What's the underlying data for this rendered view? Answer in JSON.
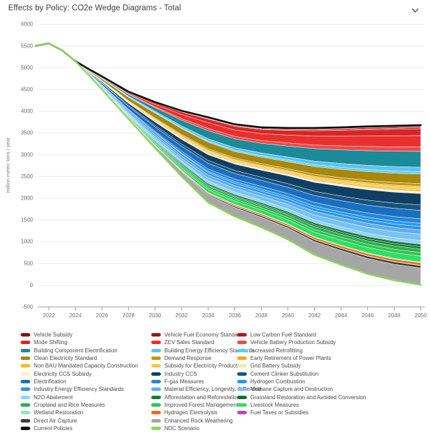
{
  "header": {
    "title": "Effects by Policy: CO2e Wedge Diagrams - Total",
    "collapse_icon": "chevron-down"
  },
  "chart_data": {
    "type": "area",
    "title": "Effects by Policy: CO2e Wedge Diagrams - Total",
    "xlabel": "",
    "ylabel": "million metric tons / year",
    "ylim": [
      -500,
      6000
    ],
    "yticks": [
      6000,
      5500,
      5000,
      4500,
      4000,
      3500,
      3000,
      2500,
      2000,
      1500,
      1000,
      500,
      0,
      -500
    ],
    "xticks": [
      2022,
      2024,
      2026,
      2028,
      2030,
      2032,
      2034,
      2036,
      2038,
      2040,
      2042,
      2044,
      2046,
      2048,
      2050
    ],
    "grid": "horizontal",
    "legend_position": "bottom",
    "x": [
      2021,
      2022,
      2023,
      2024,
      2025,
      2026,
      2028,
      2030,
      2032,
      2034,
      2036,
      2038,
      2040,
      2042,
      2044,
      2046,
      2048,
      2050
    ],
    "top_series": {
      "name": "Current Policies",
      "color": "#0a0a0a",
      "values": [
        5500,
        5560,
        5400,
        5150,
        4970,
        4800,
        4450,
        4210,
        4010,
        3860,
        3700,
        3630,
        3615,
        3615,
        3630,
        3650,
        3665,
        3680
      ]
    },
    "bottom_series": {
      "name": "NDC Scenario",
      "color": "#8ed45f",
      "values": [
        5500,
        5560,
        5400,
        5150,
        4830,
        4500,
        3820,
        3150,
        2500,
        1900,
        1580,
        1330,
        1050,
        700,
        470,
        260,
        110,
        10
      ]
    },
    "profiles": {
      "std": [
        1,
        1,
        1,
        1,
        1,
        1,
        1,
        1,
        1,
        1,
        1,
        1,
        1,
        1,
        1,
        1,
        1,
        1
      ],
      "front": [
        1.7,
        1.7,
        1.7,
        1.7,
        1.7,
        1.6,
        1.5,
        1.35,
        1.15,
        1.0,
        0.9,
        0.85,
        0.8,
        0.78,
        0.76,
        0.75,
        0.75,
        0.75
      ],
      "ramp": [
        0.3,
        0.3,
        0.3,
        0.3,
        0.35,
        0.45,
        0.6,
        0.75,
        0.9,
        1,
        1,
        1,
        1,
        1,
        1,
        1,
        1,
        1
      ],
      "late": [
        0,
        0,
        0,
        0,
        0,
        0,
        0.05,
        0.2,
        0.5,
        0.8,
        0.95,
        1,
        1,
        1,
        1,
        1,
        1,
        1
      ],
      "ramp2": [
        0,
        0,
        0,
        0,
        0.05,
        0.1,
        0.25,
        0.45,
        0.7,
        0.85,
        0.95,
        1,
        1,
        1,
        1,
        1,
        1,
        1
      ]
    },
    "wedges": [
      {
        "name": "Vehicle Subsidy",
        "color": "#8c1010",
        "weight": 30,
        "profile": "ramp"
      },
      {
        "name": "Vehicle Fuel Economy Standards",
        "color": "#9e1414",
        "weight": 25,
        "profile": "ramp"
      },
      {
        "name": "Low Carbon Fuel Standard",
        "color": "#b31818",
        "weight": 25,
        "profile": "ramp"
      },
      {
        "name": "Mode Shifting",
        "color": "#d92525",
        "weight": 150,
        "profile": "ramp"
      },
      {
        "name": "ZEV Sales Standard",
        "color": "#e83030",
        "weight": 250,
        "profile": "ramp"
      },
      {
        "name": "Vehicle Battery Production Subsidy",
        "color": "#f04848",
        "weight": 100,
        "profile": "ramp"
      },
      {
        "name": "Building Component Electrification",
        "color": "#1b8a99",
        "weight": 350,
        "profile": "ramp"
      },
      {
        "name": "Building Energy Efficiency Standards",
        "color": "#62c0ee",
        "weight": 100,
        "profile": "std"
      },
      {
        "name": "Increased Retrofitting",
        "color": "#4fd4f4",
        "weight": 50,
        "profile": "std"
      },
      {
        "name": "Clean Electricity Standard",
        "color": "#a8870e",
        "weight": 280,
        "profile": "front"
      },
      {
        "name": "Demand Response",
        "color": "#bf9a10",
        "weight": 60,
        "profile": "std"
      },
      {
        "name": "Non BAU Mandated Capacity Construction",
        "color": "#f3bc2b",
        "weight": 50,
        "profile": "front"
      },
      {
        "name": "Subsidy for Electricity Production",
        "color": "#f6c94a",
        "weight": 55,
        "profile": "front"
      },
      {
        "name": "Early Retirement of Power Plants",
        "color": "#f0a81c",
        "weight": 40,
        "profile": "front"
      },
      {
        "name": "Grid Battery Subsidy",
        "color": "#f6e8ae",
        "weight": 25,
        "profile": "std"
      },
      {
        "name": "Electricity CCS Subsidy",
        "color": "#faf0cb",
        "weight": 28,
        "profile": "std"
      },
      {
        "name": "Industry CCS",
        "color": "#113f63",
        "weight": 250,
        "profile": "std"
      },
      {
        "name": "Cement Clinker Substitution",
        "color": "#18527e",
        "weight": 118,
        "profile": "std"
      },
      {
        "name": "Electrification",
        "color": "#1a6fc0",
        "weight": 250,
        "profile": "front"
      },
      {
        "name": "F-gas Measures",
        "color": "#2a84d6",
        "weight": 100,
        "profile": "std"
      },
      {
        "name": "Hydrogen Combustion",
        "color": "#1e9cf0",
        "weight": 70,
        "profile": "late"
      },
      {
        "name": "Industry Energy Efficiency Standards",
        "color": "#3491e0",
        "weight": 100,
        "profile": "front"
      },
      {
        "name": "Material Efficiency, Longevity, & Re-Use",
        "color": "#5fb0ea",
        "weight": 130,
        "profile": "front"
      },
      {
        "name": "Methane Capture and Destruction",
        "color": "#77c3f1",
        "weight": 138,
        "profile": "std"
      },
      {
        "name": "N2O Abatement",
        "color": "#93d2f7",
        "weight": 105,
        "profile": "front"
      },
      {
        "name": "Afforestation and Reforestation",
        "color": "#177c39",
        "weight": 60,
        "profile": "std"
      },
      {
        "name": "Grassland Restoration and Avoided Conversion",
        "color": "#0e6e30",
        "weight": 45,
        "profile": "std"
      },
      {
        "name": "Cropland and Rice Measures",
        "color": "#2bb04c",
        "weight": 80,
        "profile": "std"
      },
      {
        "name": "Improved Forest Management",
        "color": "#31c455",
        "weight": 78,
        "profile": "std"
      },
      {
        "name": "Livestock Measures",
        "color": "#2fe060",
        "weight": 131,
        "profile": "ramp"
      },
      {
        "name": "Wetland Restoration",
        "color": "#8feab5",
        "weight": 20,
        "profile": "std"
      },
      {
        "name": "Hydrogen Electrolysis",
        "color": "#ef6a12",
        "weight": 52,
        "profile": "ramp2"
      },
      {
        "name": "Fuel Taxes or Subsidies",
        "color": "#c03ec0",
        "weight": 8,
        "profile": "std"
      },
      {
        "name": "Direct Air Capture",
        "color": "#3c3c3c",
        "weight": 52,
        "profile": "late"
      },
      {
        "name": "Enhanced Rock Weathering",
        "color": "#a6a6a6",
        "weight": 368,
        "profile": "ramp2"
      }
    ]
  },
  "legend": {
    "columns": [
      [
        {
          "label": "Vehicle Subsidy",
          "color": "#8c1010"
        },
        {
          "label": "Mode Shifting",
          "color": "#d92525"
        },
        {
          "label": "Building Component Electrification",
          "color": "#1b8a99"
        },
        {
          "label": "Clean Electricity Standard",
          "color": "#a8870e"
        },
        {
          "label": "Non BAU Mandated Capacity Construction",
          "color": "#f3bc2b"
        },
        {
          "label": "Electricity CCS Subsidy",
          "color": "#faf0cb"
        },
        {
          "label": "Electrification",
          "color": "#1a6fc0"
        },
        {
          "label": "Industry Energy Efficiency Standards",
          "color": "#3491e0"
        },
        {
          "label": "N2O Abatement",
          "color": "#93d2f7"
        },
        {
          "label": "Cropland and Rice Measures",
          "color": "#2bb04c"
        },
        {
          "label": "Wetland Restoration",
          "color": "#8feab5"
        },
        {
          "label": "Direct Air Capture",
          "color": "#3c3c3c"
        },
        {
          "label": "Current Policies",
          "color": "#0a0a0a"
        }
      ],
      [
        {
          "label": "Vehicle Fuel Economy Standards",
          "color": "#9e1414"
        },
        {
          "label": "ZEV Sales Standard",
          "color": "#e83030"
        },
        {
          "label": "Building Energy Efficiency Standards",
          "color": "#62c0ee"
        },
        {
          "label": "Demand Response",
          "color": "#bf9a10"
        },
        {
          "label": "Subsidy for Electricity Production",
          "color": "#f6c94a"
        },
        {
          "label": "Industry CCS",
          "color": "#113f63"
        },
        {
          "label": "F-gas Measures",
          "color": "#2a84d6"
        },
        {
          "label": "Material Efficiency, Longevity, & Re-Use",
          "color": "#5fb0ea"
        },
        {
          "label": "Afforestation and Reforestation",
          "color": "#177c39"
        },
        {
          "label": "Improved Forest Management",
          "color": "#31c455"
        },
        {
          "label": "Hydrogen Electrolysis",
          "color": "#ef6a12"
        },
        {
          "label": "Enhanced Rock Weathering",
          "color": "#a6a6a6"
        },
        {
          "label": "NDC Scenario",
          "color": "#8ed45f"
        }
      ],
      [
        {
          "label": "Low Carbon Fuel Standard",
          "color": "#b31818"
        },
        {
          "label": "Vehicle Battery Production Subsidy",
          "color": "#f04848"
        },
        {
          "label": "Increased Retrofitting",
          "color": "#4fd4f4"
        },
        {
          "label": "Early Retirement of Power Plants",
          "color": "#f0a81c"
        },
        {
          "label": "Grid Battery Subsidy",
          "color": "#f6e8ae"
        },
        {
          "label": "Cement Clinker Substitution",
          "color": "#18527e"
        },
        {
          "label": "Hydrogen Combustion",
          "color": "#1e9cf0"
        },
        {
          "label": "Methane Capture and Destruction",
          "color": "#77c3f1"
        },
        {
          "label": "Grassland Restoration and Avoided Conversion",
          "color": "#0e6e30"
        },
        {
          "label": "Livestock Measures",
          "color": "#2fe060"
        },
        {
          "label": "Fuel Taxes or Subsidies",
          "color": "#c03ec0"
        }
      ]
    ]
  }
}
